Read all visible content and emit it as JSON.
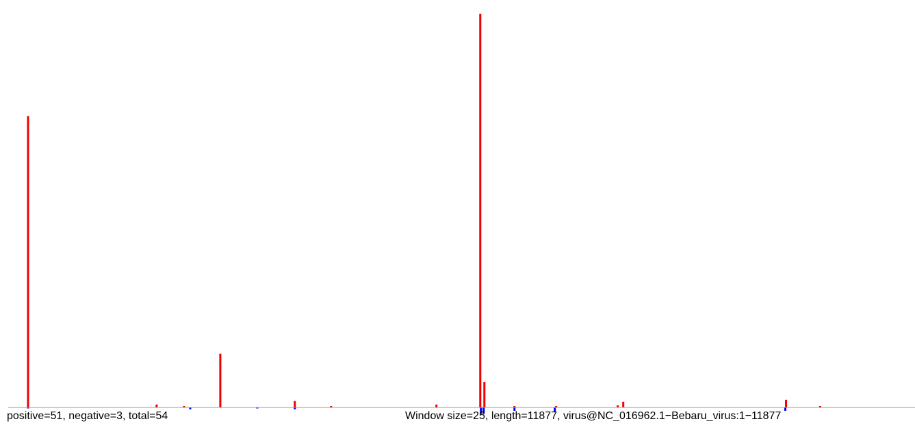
{
  "chart_data": {
    "type": "bar",
    "left_label": "positive=51, negative=3, total=54",
    "right_label": "Window size=25, length=11877, virus@NC_016962.1−Bebaru_virus:1−11877",
    "xlim": [
      0,
      11877
    ],
    "ylim": [
      -3,
      100
    ],
    "series": [
      {
        "name": "positive",
        "color": "#ee0000",
        "x": [
          260,
          1944,
          2303,
          2778,
          3754,
          4229,
          5609,
          6183,
          6237,
          6631,
          7177,
          7984,
          8056,
          10188,
          10636
        ],
        "values": [
          74,
          0.7,
          0.3,
          13.6,
          1.6,
          0.3,
          0.7,
          100,
          6.4,
          0.3,
          0.3,
          0.5,
          1.4,
          1.9,
          0.3
        ]
      },
      {
        "name": "negative",
        "color": "#0000ee",
        "x": [
          260,
          2384,
          3262,
          3754,
          6192,
          6228,
          6631,
          7159,
          10179
        ],
        "values": [
          -0.3,
          -0.5,
          -0.3,
          -0.5,
          -1.7,
          -1.7,
          -0.9,
          -1.2,
          -0.9
        ]
      }
    ]
  }
}
